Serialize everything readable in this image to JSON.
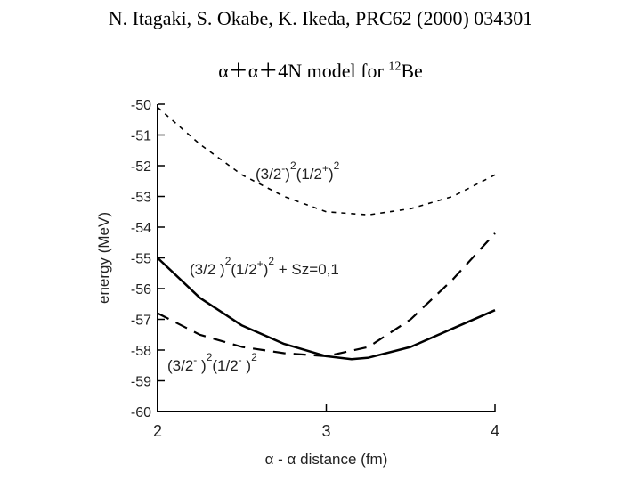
{
  "header": {
    "reference": "N. Itagaki, S. Okabe, K. Ikeda, PRC62 (2000) 034301",
    "model_prefix": "α＋α＋4N model for ",
    "model_mass": "12",
    "model_nucleus": "Be"
  },
  "chart_data": {
    "type": "line",
    "xlabel": "α - α distance (fm)",
    "ylabel": "energy (MeV)",
    "xlim": [
      2,
      4
    ],
    "ylim": [
      -60,
      -50
    ],
    "xticks": [
      "2",
      "3",
      "4"
    ],
    "yticks": [
      "-50",
      "-51",
      "-52",
      "-53",
      "-54",
      "-55",
      "-56",
      "-57",
      "-58",
      "-59",
      "-60"
    ],
    "grid": false,
    "series": [
      {
        "name": "(3/2-)²(1/2+)²",
        "style": "short-dash",
        "x": [
          2.0,
          2.25,
          2.5,
          2.75,
          3.0,
          3.25,
          3.5,
          3.75,
          4.0
        ],
        "y": [
          -50.1,
          -51.3,
          -52.3,
          -53.0,
          -53.5,
          -53.6,
          -53.4,
          -53.0,
          -52.3
        ]
      },
      {
        "name": "(3/2-)²(1/2+)² Sz=0,1",
        "style": "solid",
        "x": [
          2.0,
          2.25,
          2.5,
          2.75,
          3.0,
          3.15,
          3.25,
          3.5,
          3.75,
          4.0
        ],
        "y": [
          -55.0,
          -56.3,
          -57.2,
          -57.8,
          -58.2,
          -58.3,
          -58.25,
          -57.9,
          -57.3,
          -56.7
        ]
      },
      {
        "name": "(3/2-)²(1/2-)²",
        "style": "long-dash",
        "x": [
          2.0,
          2.25,
          2.5,
          2.75,
          3.0,
          3.25,
          3.5,
          3.75,
          4.0
        ],
        "y": [
          -56.8,
          -57.5,
          -57.9,
          -58.1,
          -58.2,
          -57.9,
          -57.0,
          -55.7,
          -54.2
        ]
      }
    ],
    "annotations": [
      {
        "base": "(3/2",
        "sup1": "-",
        "mid": ")",
        "sup2": "2",
        "paren": "(1/2",
        "sup3": "+",
        "end": ")",
        "sup4": "2"
      },
      {
        "base": "(3/2 )",
        "sup1": "2",
        "mid": "(1/2",
        "sup2": "+",
        "end": ")",
        "sup3": "2",
        "tail": " + Sz=0,1"
      },
      {
        "base": "(3/2",
        "sup1": "-",
        "mid": " )",
        "sup2": "2",
        "paren": "(1/2",
        "sup3": "-",
        "end": " )",
        "sup4": "2"
      }
    ]
  }
}
